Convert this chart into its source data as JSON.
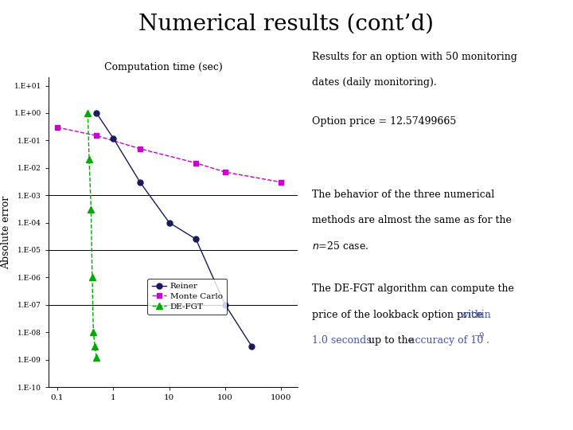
{
  "title": "Numerical results (cont’d)",
  "xlabel_above": "Computation time (sec)",
  "ylabel": "Absolute error",
  "reiner_x": [
    0.5,
    1.0,
    3.0,
    10.0,
    30.0,
    100.0,
    300.0
  ],
  "reiner_y": [
    1.0,
    0.12,
    0.003,
    0.0001,
    2.5e-05,
    1e-07,
    3e-09
  ],
  "mc_x": [
    0.1,
    0.5,
    3.0,
    30.0,
    100.0,
    1000.0
  ],
  "mc_y": [
    0.3,
    0.15,
    0.05,
    0.015,
    0.007,
    0.003
  ],
  "defgt_x": [
    0.35,
    0.37,
    0.4,
    0.42,
    0.44,
    0.47,
    0.5
  ],
  "defgt_y": [
    1.0,
    0.02,
    0.0003,
    1e-06,
    1e-08,
    3e-09,
    1.2e-09
  ],
  "reiner_color": "#1a1a5e",
  "mc_color": "#cc00cc",
  "defgt_color": "#00aa00",
  "hline_y": [
    0.001,
    1e-05,
    1e-07
  ],
  "ytick_labels": [
    "1.E-10",
    "1.E-09",
    "1.E-08",
    "1.E-07",
    "1.E-06",
    "1.E-05",
    "1.E-04",
    "1.E-03",
    "1.E-02",
    "1.E-01",
    "1.E+00",
    "1.E+01"
  ],
  "xtick_vals": [
    0.1,
    1,
    10,
    100,
    1000
  ],
  "xtick_labels": [
    "0.1",
    "1",
    "10",
    "100",
    "1000"
  ],
  "background_color": "#ffffff",
  "blue_color": "#4455aa"
}
